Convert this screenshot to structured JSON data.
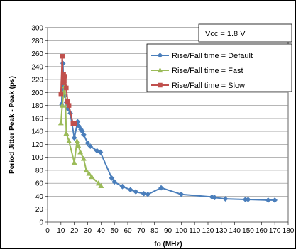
{
  "chart_data": {
    "type": "line",
    "title": "",
    "xlabel": "fo (MHz)",
    "ylabel": "Period Jitter Peak - Peak (ps)",
    "xlim": [
      0,
      180
    ],
    "ylim": [
      0,
      300
    ],
    "x_ticks": [
      0,
      10,
      20,
      30,
      40,
      50,
      60,
      70,
      80,
      90,
      100,
      110,
      120,
      130,
      140,
      150,
      160,
      170,
      180
    ],
    "y_ticks": [
      0,
      20,
      40,
      60,
      80,
      100,
      120,
      140,
      160,
      180,
      200,
      220,
      240,
      260,
      280,
      300
    ],
    "grid": "horizontal",
    "legend_position": "top-right",
    "annotation": "Vcc = 1.8 V",
    "series": [
      {
        "name": "Rise/Fall time = Default",
        "color": "#4a7ebb",
        "marker": "diamond",
        "x": [
          10.5,
          11.5,
          12.0,
          13.0,
          14.0,
          15.0,
          17.0,
          20.0,
          22.5,
          23.5,
          25.0,
          26.0,
          27.0,
          30.0,
          32.0,
          37.0,
          39.5,
          48.0,
          50.0,
          56.0,
          62.0,
          66.0,
          72.0,
          75.0,
          85.0,
          100.0,
          123.0,
          125.0,
          133.0,
          148.0,
          150.0,
          165.0,
          170.0
        ],
        "y": [
          182,
          245,
          205,
          195,
          185,
          175,
          168,
          130,
          155,
          148,
          143,
          140,
          135,
          122,
          117,
          110,
          108,
          68,
          62,
          55,
          50,
          47,
          44,
          43,
          53,
          43,
          39,
          38,
          36,
          35,
          35,
          34,
          34
        ]
      },
      {
        "name": "Rise/Fall time = Fast",
        "color": "#9bbb59",
        "marker": "triangle",
        "x": [
          10.0,
          11.0,
          12.0,
          13.0,
          14.0,
          16.0,
          20.0,
          22.0,
          23.0,
          24.5,
          27.0,
          29.0,
          31.0,
          33.0,
          38.0,
          40.0
        ],
        "y": [
          153,
          180,
          200,
          210,
          137,
          125,
          92,
          125,
          118,
          108,
          98,
          80,
          75,
          70,
          60,
          56
        ]
      },
      {
        "name": "Rise/Fall time = Slow",
        "color": "#c0504d",
        "marker": "square",
        "x": [
          10.0,
          11.0,
          11.5,
          12.0,
          12.5,
          13.0,
          14.0,
          15.0,
          16.0,
          19.0,
          20.5
        ],
        "y": [
          198,
          256,
          215,
          228,
          218,
          225,
          207,
          186,
          180,
          152,
          152
        ]
      }
    ]
  }
}
